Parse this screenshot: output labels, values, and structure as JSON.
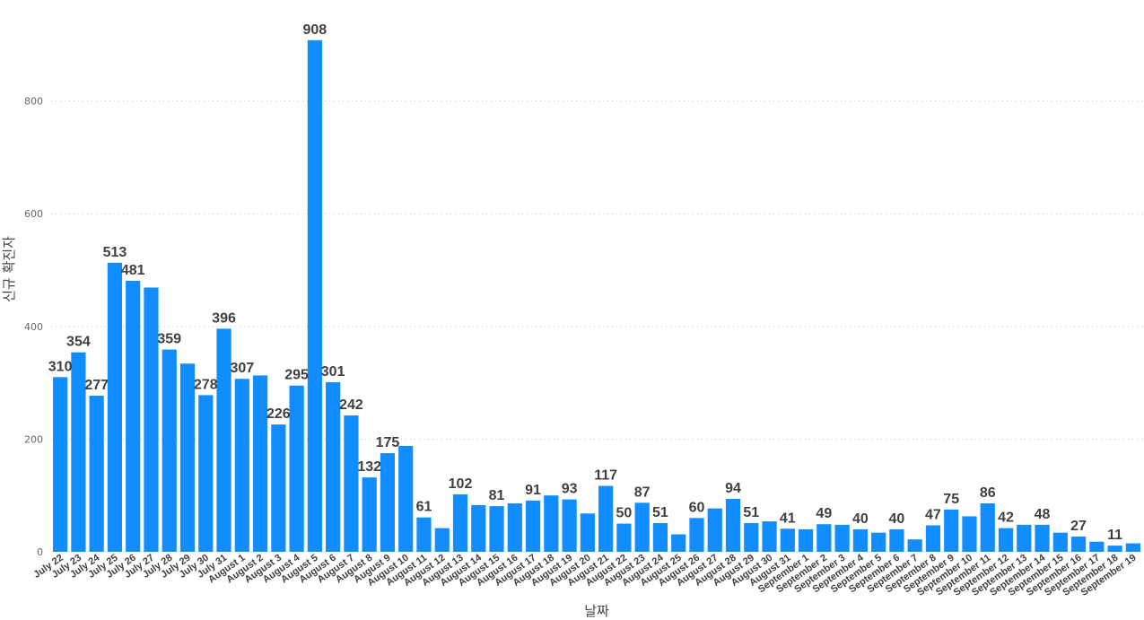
{
  "chart_data": {
    "type": "bar",
    "title": "",
    "xlabel": "날짜",
    "ylabel": "신규 확진자",
    "ylim": [
      0,
      900
    ],
    "yticks": [
      0,
      200,
      400,
      600,
      800
    ],
    "grid": true,
    "legend": "none",
    "bar_color": "#118DFF",
    "categories": [
      "July 22",
      "July 23",
      "July 24",
      "July 25",
      "July 26",
      "July 27",
      "July 28",
      "July 29",
      "July 30",
      "July 31",
      "August 1",
      "August 2",
      "August 3",
      "August 4",
      "August 5",
      "August 6",
      "August 7",
      "August 8",
      "August 9",
      "August 10",
      "August 11",
      "August 12",
      "August 13",
      "August 14",
      "August 15",
      "August 16",
      "August 17",
      "August 18",
      "August 19",
      "August 20",
      "August 21",
      "August 22",
      "August 23",
      "August 24",
      "August 25",
      "August 26",
      "August 27",
      "August 28",
      "August 29",
      "August 30",
      "August 31",
      "September 1",
      "September 2",
      "September 3",
      "September 4",
      "September 5",
      "September 6",
      "September 7",
      "September 8",
      "September 9",
      "September 10",
      "September 11",
      "September 12",
      "September 13",
      "September 14",
      "September 15",
      "September 16",
      "September 17",
      "September 18",
      "September 19"
    ],
    "values": [
      310,
      354,
      277,
      513,
      481,
      469,
      359,
      334,
      278,
      396,
      307,
      313,
      226,
      295,
      908,
      301,
      242,
      132,
      175,
      188,
      61,
      42,
      102,
      83,
      81,
      86,
      91,
      100,
      93,
      68,
      117,
      50,
      87,
      51,
      31,
      60,
      77,
      94,
      51,
      54,
      41,
      40,
      49,
      48,
      40,
      34,
      40,
      22,
      47,
      75,
      63,
      86,
      42,
      48,
      48,
      34,
      27,
      18,
      11,
      15
    ],
    "labeled_indices": [
      0,
      1,
      2,
      3,
      4,
      6,
      8,
      9,
      10,
      12,
      13,
      14,
      15,
      16,
      17,
      18,
      20,
      22,
      24,
      26,
      28,
      30,
      31,
      32,
      33,
      35,
      37,
      38,
      40,
      42,
      44,
      46,
      48,
      49,
      51,
      52,
      54,
      56,
      58
    ]
  }
}
